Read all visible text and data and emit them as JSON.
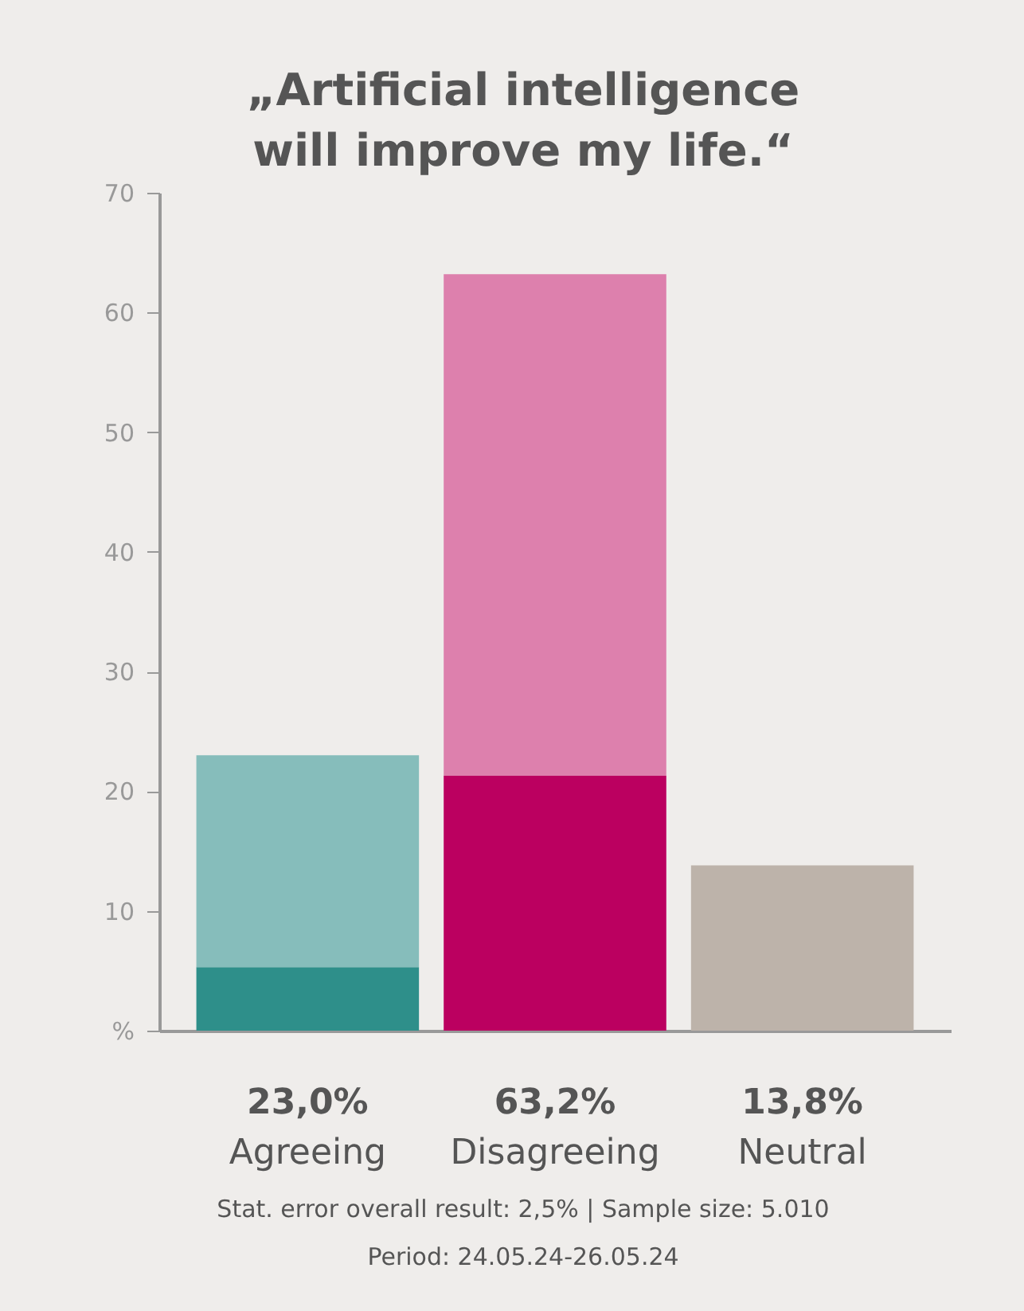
{
  "chart_data": {
    "type": "bar",
    "stacked": true,
    "title": "„Artificial intelligence\nwill improve my life.“",
    "categories": [
      "Agreeing",
      "Disagreeing",
      "Neutral"
    ],
    "series": [
      {
        "colors": [
          "#2e8f8a",
          "#bb0060",
          "#bdb3aa"
        ],
        "values": [
          5.3,
          21.3,
          13.8
        ]
      },
      {
        "colors": [
          "#86bdbb",
          "#dd80ad",
          null
        ],
        "values": [
          17.7,
          41.9,
          null
        ]
      }
    ],
    "totals": [
      "23,0%",
      "63,2%",
      "13,8%"
    ],
    "ylim": [
      0,
      70
    ],
    "yticks": [
      {
        "value": 0,
        "label": "%"
      },
      10,
      20,
      30,
      40,
      50,
      60,
      70
    ],
    "grid": false,
    "annotations": [
      "Stat. error overall result: 2,5% | Sample size: 5.010",
      "Period: 24.05.24-26.05.24"
    ]
  }
}
